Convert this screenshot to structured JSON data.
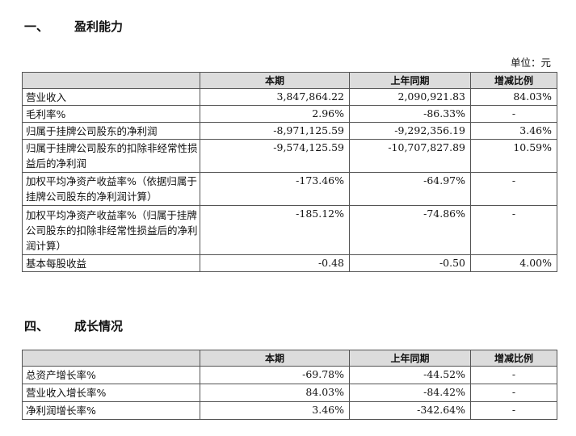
{
  "section1": {
    "number": "一、",
    "title": "盈利能力"
  },
  "unit": "单位：元",
  "table1": {
    "headers": [
      "",
      "本期",
      "上年同期",
      "增减比例"
    ],
    "rows": [
      {
        "label": "营业收入",
        "current": "3,847,864.22",
        "previous": "2,090,921.83",
        "change": "84.03%"
      },
      {
        "label": "毛利率%",
        "current": "2.96%",
        "previous": "-86.33%",
        "change": "-"
      },
      {
        "label": "归属于挂牌公司股东的净利润",
        "current": "-8,971,125.59",
        "previous": "-9,292,356.19",
        "change": "3.46%"
      },
      {
        "label": "归属于挂牌公司股东的扣除非经常性损益后的净利润",
        "current": "-9,574,125.59",
        "previous": "-10,707,827.89",
        "change": "10.59%"
      },
      {
        "label": "加权平均净资产收益率%（依据归属于挂牌公司股东的净利润计算）",
        "current": "-173.46%",
        "previous": "-64.97%",
        "change": "-"
      },
      {
        "label": "加权平均净资产收益率%（归属于挂牌公司股东的扣除非经常性损益后的净利润计算）",
        "current": "-185.12%",
        "previous": "-74.86%",
        "change": "-"
      },
      {
        "label": "基本每股收益",
        "current": "-0.48",
        "previous": "-0.50",
        "change": "4.00%"
      }
    ]
  },
  "section4": {
    "number": "四、",
    "title": "成长情况"
  },
  "table4": {
    "headers": [
      "",
      "本期",
      "上年同期",
      "增减比例"
    ],
    "rows": [
      {
        "label": "总资产增长率%",
        "current": "-69.78%",
        "previous": "-44.52%",
        "change": "-"
      },
      {
        "label": "营业收入增长率%",
        "current": "84.03%",
        "previous": "-84.42%",
        "change": "-"
      },
      {
        "label": "净利润增长率%",
        "current": "3.46%",
        "previous": "-342.64%",
        "change": "-"
      }
    ]
  }
}
